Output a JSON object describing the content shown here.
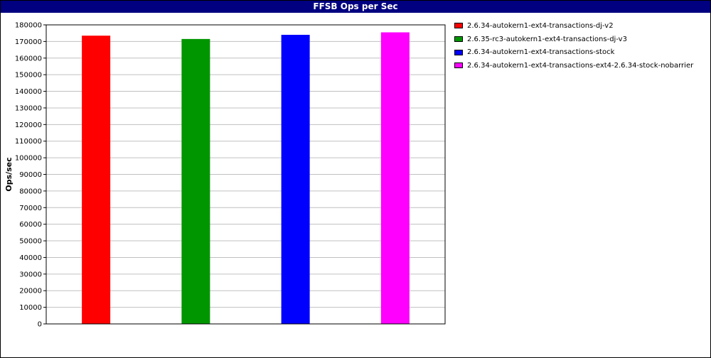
{
  "chart_data": {
    "type": "bar",
    "title": "FFSB Ops per Sec",
    "xlabel": "",
    "ylabel": "Ops/sec",
    "ylim": [
      0,
      180000
    ],
    "ytick_step": 10000,
    "grid": true,
    "legend_position": "right",
    "series": [
      {
        "name": "2.6.34-autokern1-ext4-transactions-dj-v2",
        "value": 173500,
        "color": "#ff0000"
      },
      {
        "name": "2.6.35-rc3-autokern1-ext4-transactions-dj-v3",
        "value": 171500,
        "color": "#009600"
      },
      {
        "name": "2.6.34-autokern1-ext4-transactions-stock",
        "value": 174000,
        "color": "#0000ff"
      },
      {
        "name": "2.6.34-autokern1-ext4-transactions-ext4-2.6.34-stock-nobarrier",
        "value": 175500,
        "color": "#ff00ff"
      }
    ]
  }
}
